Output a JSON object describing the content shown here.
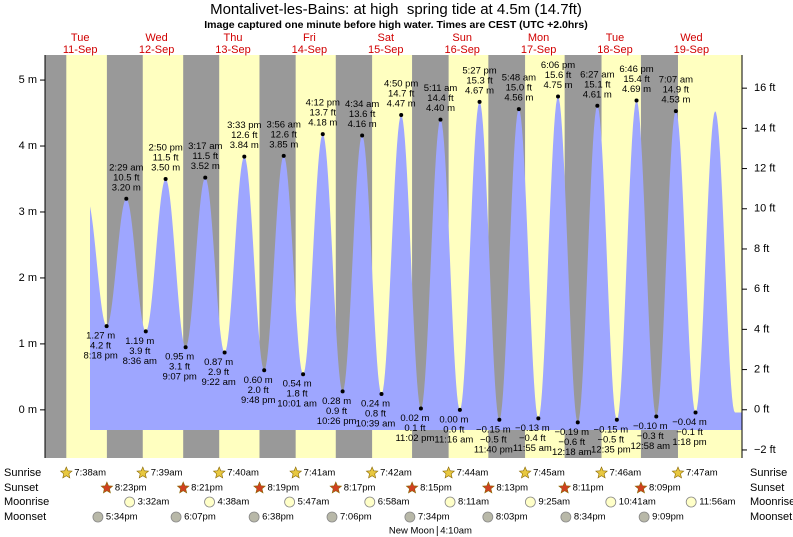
{
  "chart_data": {
    "type": "tide",
    "title": "Montalivet-les-Bains: at high  spring tide at 4.5m (14.7ft)",
    "subtitle": "Image captured one minute before high water. Times are CEST (UTC +2.0hrs)",
    "weekdays": [
      "Tue",
      "Wed",
      "Thu",
      "Fri",
      "Sat",
      "Sun",
      "Mon",
      "Tue",
      "Wed"
    ],
    "dates": [
      "11-Sep",
      "12-Sep",
      "13-Sep",
      "14-Sep",
      "15-Sep",
      "16-Sep",
      "17-Sep",
      "18-Sep",
      "19-Sep"
    ],
    "ylim": [
      -0.73,
      5.38
    ],
    "yticks": [
      {
        "value": 0,
        "label": "0 m"
      },
      {
        "value": 1,
        "label": "1 m"
      },
      {
        "value": 2,
        "label": "2 m"
      },
      {
        "value": 3,
        "label": "3 m"
      },
      {
        "value": 4,
        "label": "4 m"
      },
      {
        "value": 5,
        "label": "5 m"
      }
    ],
    "y2lim": [
      -2.4,
      17.65
    ],
    "y2ticks": [
      {
        "value": -2,
        "label": "−2 ft"
      },
      {
        "value": 0,
        "label": "0 ft"
      },
      {
        "value": 2,
        "label": "2 ft"
      },
      {
        "value": 4,
        "label": "4 ft"
      },
      {
        "value": 6,
        "label": "6 ft"
      },
      {
        "value": 8,
        "label": "8 ft"
      },
      {
        "value": 10,
        "label": "10 ft"
      },
      {
        "value": 12,
        "label": "12 ft"
      },
      {
        "value": 14,
        "label": "14 ft"
      },
      {
        "value": 16,
        "label": "16 ft"
      }
    ],
    "tides": [
      [
        {
          "time": "8:18 pm",
          "m": 1.27,
          "m_label": "1.27 m",
          "ft": 4.2,
          "ft_label": "4.2 ft"
        }
      ],
      [
        {
          "time": "2:29 am",
          "m": 3.2,
          "m_label": "3.20 m",
          "ft": 10.5,
          "ft_label": "10.5 ft"
        },
        {
          "time": "8:36 am",
          "m": 1.19,
          "m_label": "1.19 m",
          "ft": 3.9,
          "ft_label": "3.9 ft"
        },
        {
          "time": "2:50 pm",
          "m": 3.5,
          "m_label": "3.50 m",
          "ft": 11.5,
          "ft_label": "11.5 ft"
        },
        {
          "time": "9:07 pm",
          "m": 0.95,
          "m_label": "0.95 m",
          "ft": 3.1,
          "ft_label": "3.1 ft"
        }
      ],
      [
        {
          "time": "3:17 am",
          "m": 3.52,
          "m_label": "3.52 m",
          "ft": 11.5,
          "ft_label": "11.5 ft"
        },
        {
          "time": "9:22 am",
          "m": 0.87,
          "m_label": "0.87 m",
          "ft": 2.9,
          "ft_label": "2.9 ft"
        },
        {
          "time": "3:33 pm",
          "m": 3.84,
          "m_label": "3.84 m",
          "ft": 12.6,
          "ft_label": "12.6 ft"
        },
        {
          "time": "9:48 pm",
          "m": 0.6,
          "m_label": "0.60 m",
          "ft": 2.0,
          "ft_label": "2.0 ft"
        }
      ],
      [
        {
          "time": "3:56 am",
          "m": 3.85,
          "m_label": "3.85 m",
          "ft": 12.6,
          "ft_label": "12.6 ft"
        },
        {
          "time": "10:01 am",
          "m": 0.54,
          "m_label": "0.54 m",
          "ft": 1.8,
          "ft_label": "1.8 ft"
        },
        {
          "time": "4:12 pm",
          "m": 4.18,
          "m_label": "4.18 m",
          "ft": 13.7,
          "ft_label": "13.7 ft"
        },
        {
          "time": "10:26 pm",
          "m": 0.28,
          "m_label": "0.28 m",
          "ft": 0.9,
          "ft_label": "0.9 ft"
        }
      ],
      [
        {
          "time": "4:34 am",
          "m": 4.16,
          "m_label": "4.16 m",
          "ft": 13.6,
          "ft_label": "13.6 ft"
        },
        {
          "time": "10:39 am",
          "m": 0.24,
          "m_label": "0.24 m",
          "ft": 0.8,
          "ft_label": "0.8 ft"
        },
        {
          "time": "4:50 pm",
          "m": 4.47,
          "m_label": "4.47 m",
          "ft": 14.7,
          "ft_label": "14.7 ft"
        },
        {
          "time": "11:02 pm",
          "m": 0.02,
          "m_label": "0.02 m",
          "ft": 0.1,
          "ft_label": "0.1 ft"
        }
      ],
      [
        {
          "time": "5:11 am",
          "m": 4.4,
          "m_label": "4.40 m",
          "ft": 14.4,
          "ft_label": "14.4 ft"
        },
        {
          "time": "11:16 am",
          "m": 0.0,
          "m_label": "0.00 m",
          "ft": 0.0,
          "ft_label": "0.0 ft"
        },
        {
          "time": "5:27 pm",
          "m": 4.67,
          "m_label": "4.67 m",
          "ft": 15.3,
          "ft_label": "15.3 ft"
        },
        {
          "time": "11:40 pm",
          "m": -0.15,
          "m_label": "−0.15 m",
          "ft": -0.5,
          "ft_label": "−0.5 ft"
        }
      ],
      [
        {
          "time": "5:48 am",
          "m": 4.56,
          "m_label": "4.56 m",
          "ft": 15.0,
          "ft_label": "15.0 ft"
        },
        {
          "time": "11:55 am",
          "m": -0.13,
          "m_label": "−0.13 m",
          "ft": -0.4,
          "ft_label": "−0.4 ft"
        },
        {
          "time": "6:06 pm",
          "m": 4.75,
          "m_label": "4.75 m",
          "ft": 15.6,
          "ft_label": "15.6 ft"
        }
      ],
      [
        {
          "time": "12:18 am",
          "m": -0.19,
          "m_label": "−0.19 m",
          "ft": -0.6,
          "ft_label": "−0.6 ft"
        },
        {
          "time": "6:27 am",
          "m": 4.61,
          "m_label": "4.61 m",
          "ft": 15.1,
          "ft_label": "15.1 ft"
        },
        {
          "time": "12:35 pm",
          "m": -0.15,
          "m_label": "−0.15 m",
          "ft": -0.5,
          "ft_label": "−0.5 ft"
        },
        {
          "time": "6:46 pm",
          "m": 4.69,
          "m_label": "4.69 m",
          "ft": 15.4,
          "ft_label": "15.4 ft"
        }
      ],
      [
        {
          "time": "12:58 am",
          "m": -0.1,
          "m_label": "−0.10 m",
          "ft": -0.3,
          "ft_label": "−0.3 ft"
        },
        {
          "time": "7:07 am",
          "m": 4.53,
          "m_label": "4.53 m",
          "ft": 14.9,
          "ft_label": "14.9 ft"
        },
        {
          "time": "1:18 pm",
          "m": -0.04,
          "m_label": "−0.04 m",
          "ft": -0.1,
          "ft_label": "−0.1 ft"
        }
      ]
    ],
    "row_labels": {
      "sunrise": "Sunrise",
      "sunset": "Sunset",
      "moonrise": "Moonrise",
      "moonset": "Moonset"
    },
    "sunrise": [
      "7:38am",
      "7:39am",
      "7:40am",
      "7:41am",
      "7:42am",
      "7:44am",
      "7:45am",
      "7:46am",
      "7:47am"
    ],
    "sunset": [
      "8:23pm",
      "8:21pm",
      "8:19pm",
      "8:17pm",
      "8:15pm",
      "8:13pm",
      "8:11pm",
      "8:09pm",
      null
    ],
    "moonrise": [
      null,
      "3:32am",
      "4:38am",
      "5:47am",
      "6:58am",
      "8:11am",
      "9:25am",
      "10:41am",
      "11:56am"
    ],
    "moonset": [
      "5:34pm",
      "6:07pm",
      "6:38pm",
      "7:06pm",
      "7:34pm",
      "8:03pm",
      "8:34pm",
      "9:09pm",
      null
    ],
    "moon_phase": [
      null,
      null,
      null,
      null,
      null,
      {
        "name": "New Moon",
        "time": "4:10am"
      },
      null,
      null,
      null
    ],
    "colors": {
      "day": "#ffffc0",
      "night": "#999999",
      "water": "#9ea6ff",
      "weekday": "#d00000",
      "sunrise": "#e8c840",
      "sunset": "#d04020",
      "moonrise": "#ffffc8",
      "moonset": "#b8b8a8"
    }
  }
}
